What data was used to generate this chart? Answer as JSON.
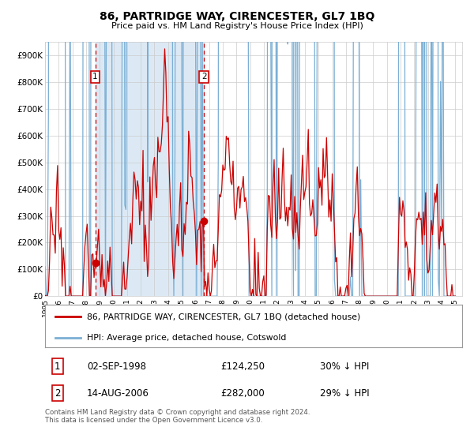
{
  "title": "86, PARTRIDGE WAY, CIRENCESTER, GL7 1BQ",
  "subtitle": "Price paid vs. HM Land Registry's House Price Index (HPI)",
  "legend_line1": "86, PARTRIDGE WAY, CIRENCESTER, GL7 1BQ (detached house)",
  "legend_line2": "HPI: Average price, detached house, Cotswold",
  "transaction1_date": "02-SEP-1998",
  "transaction1_price": 124250,
  "transaction1_label": "30% ↓ HPI",
  "transaction2_date": "14-AUG-2006",
  "transaction2_price": 282000,
  "transaction2_label": "29% ↓ HPI",
  "footer": "Contains HM Land Registry data © Crown copyright and database right 2024.\nThis data is licensed under the Open Government Licence v3.0.",
  "hpi_color": "#7bafd4",
  "price_color": "#cc0000",
  "vline_color": "#cc0000",
  "shade_color": "#dce9f5",
  "background_color": "#ffffff",
  "grid_color": "#cccccc",
  "ylim_min": 0,
  "ylim_max": 950000,
  "yticks": [
    0,
    100000,
    200000,
    300000,
    400000,
    500000,
    600000,
    700000,
    800000,
    900000
  ],
  "xlim_start": 1995.0,
  "xlim_end": 2025.5,
  "transaction1_year": 1998.67,
  "transaction2_year": 2006.62,
  "transaction1_price_exact": 124250,
  "transaction2_price_exact": 282000
}
